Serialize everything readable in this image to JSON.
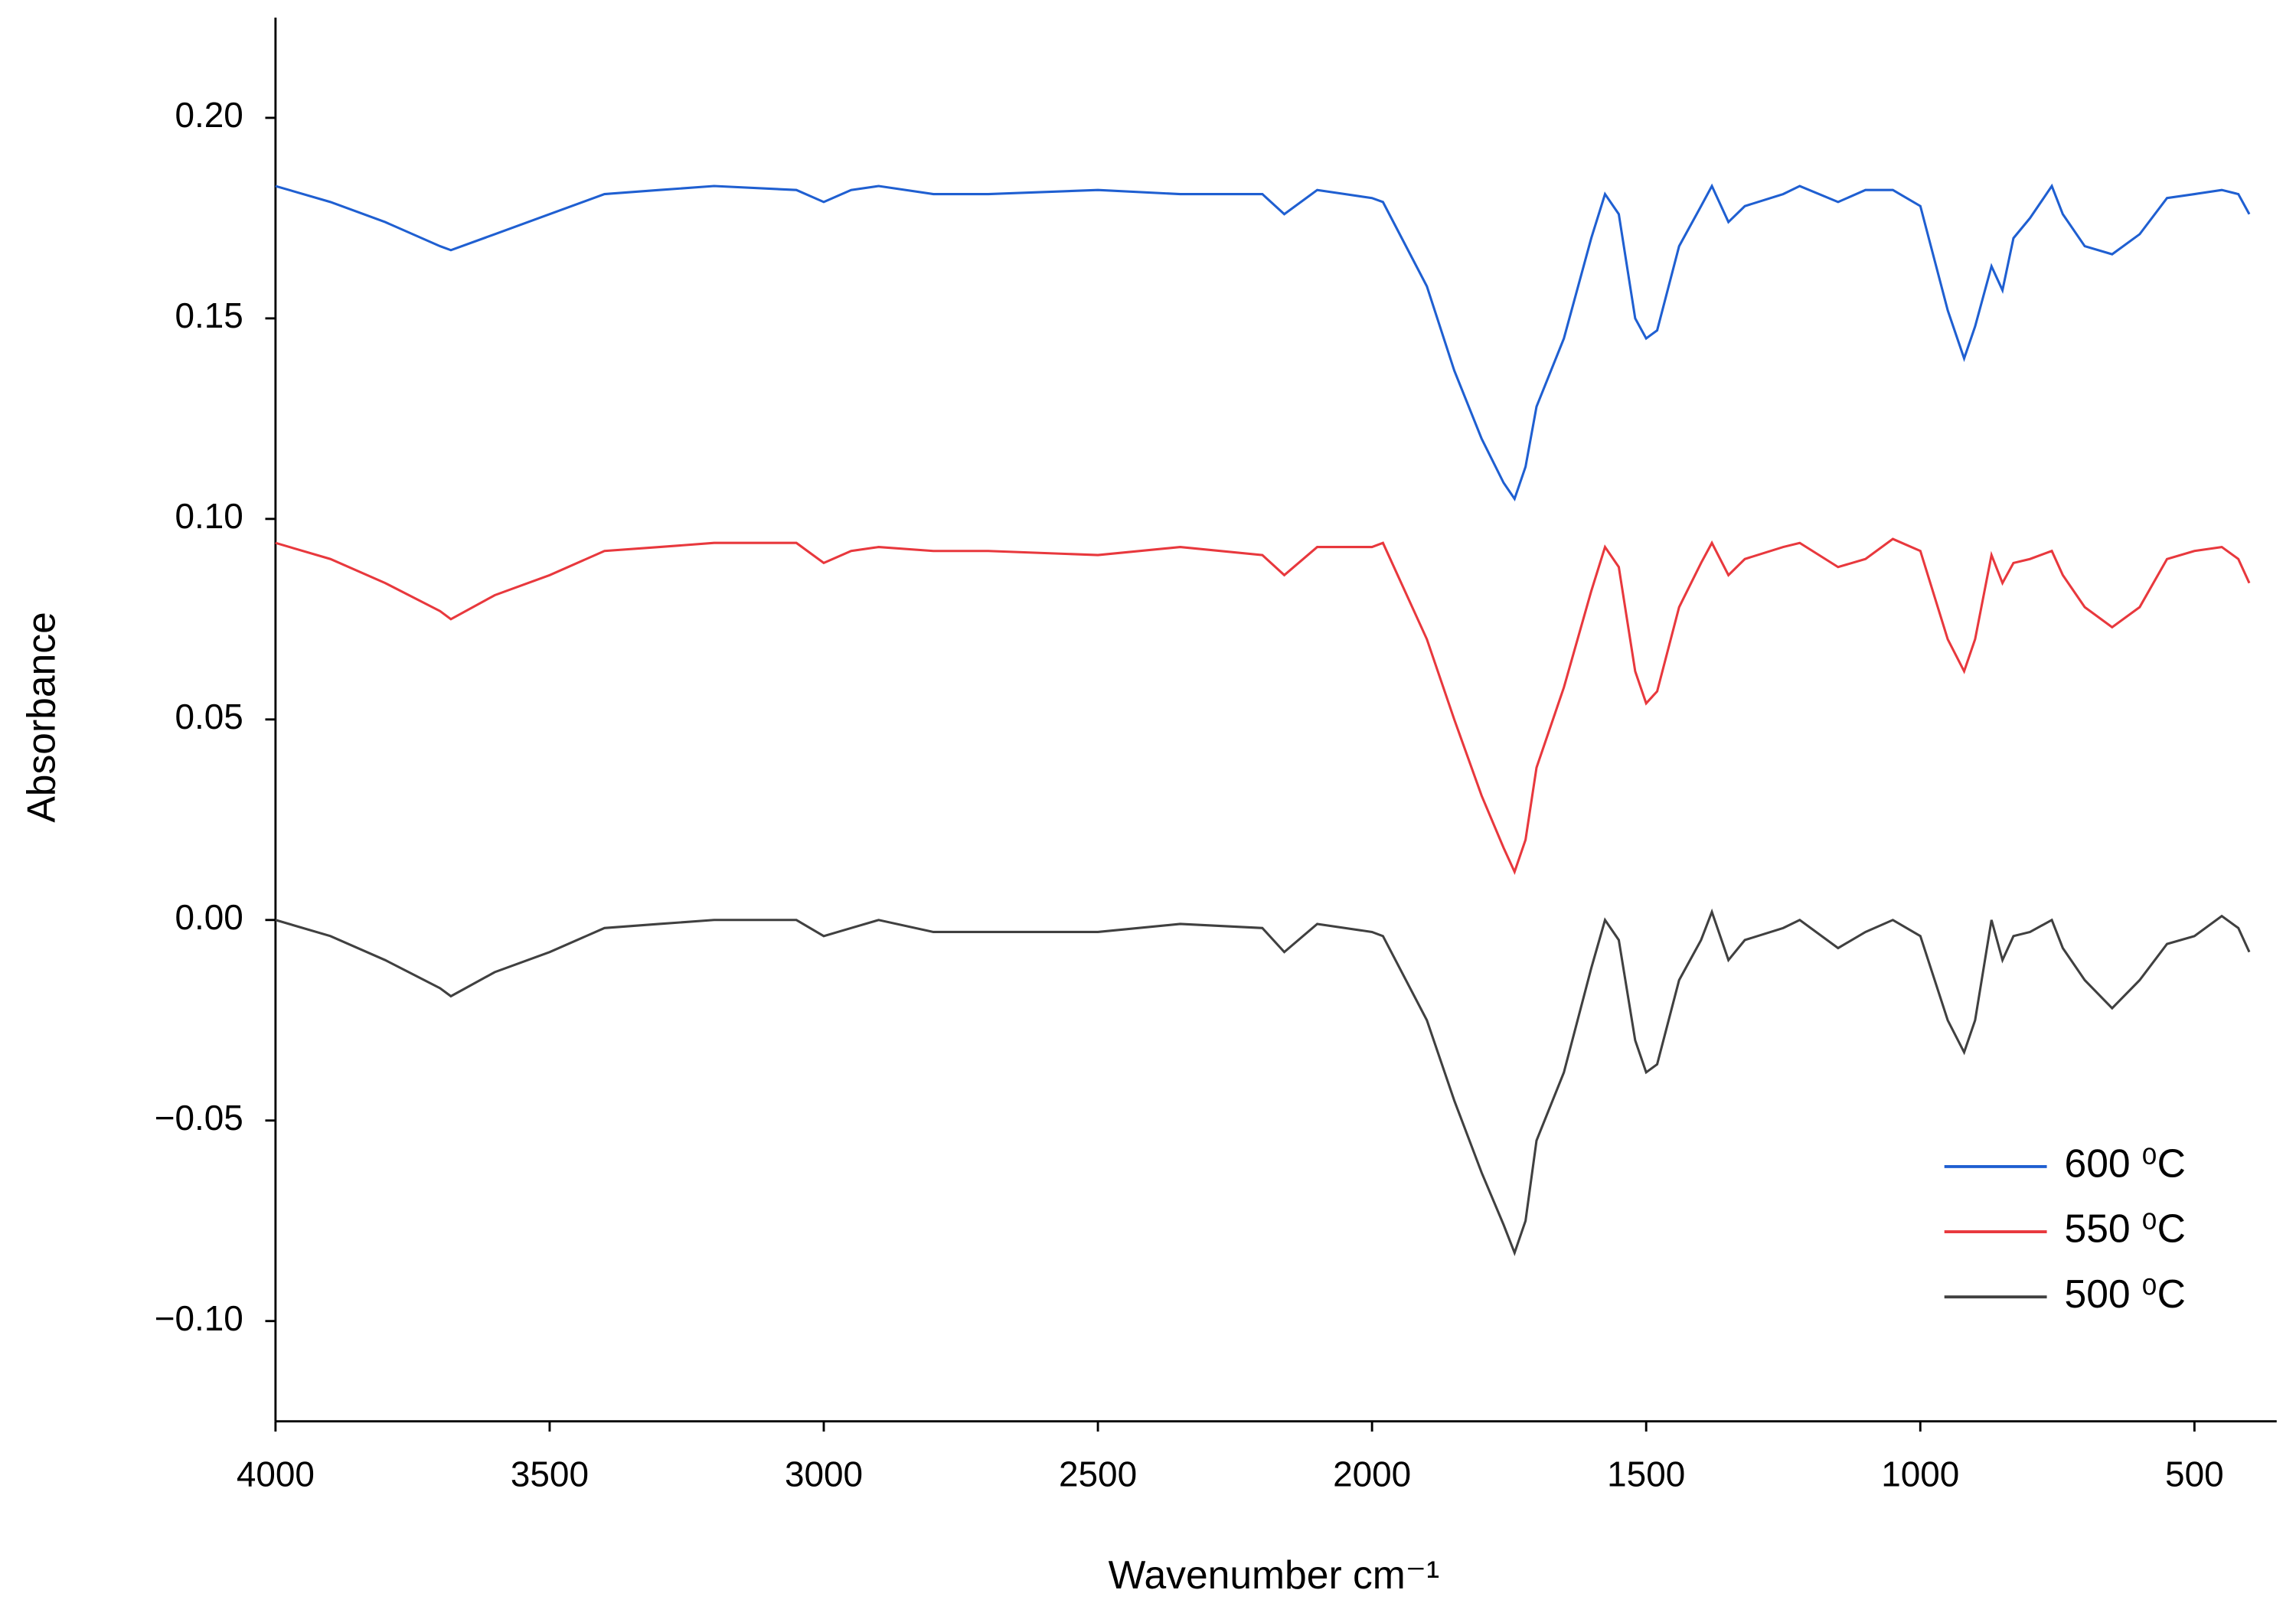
{
  "chart_data": {
    "type": "line",
    "xlabel": "Wavenumber cm⁻¹",
    "ylabel": "Absorbance",
    "x": [
      4000,
      3900,
      3800,
      3700,
      3680,
      3600,
      3500,
      3400,
      3300,
      3200,
      3050,
      3000,
      2950,
      2900,
      2800,
      2700,
      2500,
      2350,
      2200,
      2160,
      2100,
      2000,
      1980,
      1900,
      1850,
      1800,
      1760,
      1740,
      1720,
      1700,
      1650,
      1600,
      1575,
      1550,
      1520,
      1500,
      1480,
      1440,
      1400,
      1380,
      1350,
      1320,
      1250,
      1220,
      1150,
      1100,
      1050,
      1000,
      950,
      920,
      900,
      870,
      850,
      830,
      800,
      760,
      740,
      700,
      650,
      600,
      550,
      500,
      450,
      420,
      400
    ],
    "series": [
      {
        "name": "600 ⁰C",
        "color": "#1f5fd1",
        "values": [
          0.183,
          0.179,
          0.174,
          0.168,
          0.167,
          0.171,
          0.176,
          0.181,
          0.182,
          0.183,
          0.182,
          0.179,
          0.182,
          0.183,
          0.181,
          0.181,
          0.182,
          0.181,
          0.181,
          0.176,
          0.182,
          0.18,
          0.179,
          0.158,
          0.137,
          0.12,
          0.109,
          0.105,
          0.113,
          0.128,
          0.145,
          0.17,
          0.181,
          0.176,
          0.15,
          0.145,
          0.147,
          0.168,
          0.178,
          0.183,
          0.174,
          0.178,
          0.181,
          0.183,
          0.179,
          0.182,
          0.182,
          0.178,
          0.152,
          0.14,
          0.148,
          0.163,
          0.157,
          0.17,
          0.175,
          0.183,
          0.176,
          0.168,
          0.166,
          0.171,
          0.18,
          0.181,
          0.182,
          0.181,
          0.176
        ]
      },
      {
        "name": "550 ⁰C",
        "color": "#e8383d",
        "values": [
          0.094,
          0.09,
          0.084,
          0.077,
          0.075,
          0.081,
          0.086,
          0.092,
          0.093,
          0.094,
          0.094,
          0.089,
          0.092,
          0.093,
          0.092,
          0.092,
          0.091,
          0.093,
          0.091,
          0.086,
          0.093,
          0.093,
          0.094,
          0.07,
          0.05,
          0.031,
          0.018,
          0.012,
          0.02,
          0.038,
          0.058,
          0.082,
          0.093,
          0.088,
          0.062,
          0.054,
          0.057,
          0.078,
          0.089,
          0.094,
          0.086,
          0.09,
          0.093,
          0.094,
          0.088,
          0.09,
          0.095,
          0.092,
          0.07,
          0.062,
          0.07,
          0.091,
          0.084,
          0.089,
          0.09,
          0.092,
          0.086,
          0.078,
          0.073,
          0.078,
          0.09,
          0.092,
          0.093,
          0.09,
          0.084
        ]
      },
      {
        "name": "500 ⁰C",
        "color": "#404040",
        "values": [
          0,
          -0.004,
          -0.01,
          -0.017,
          -0.019,
          -0.013,
          -0.008,
          -0.002,
          -0.001,
          0,
          0,
          -0.004,
          -0.002,
          0,
          -0.003,
          -0.003,
          -0.003,
          -0.001,
          -0.002,
          -0.008,
          -0.001,
          -0.003,
          -0.004,
          -0.025,
          -0.045,
          -0.063,
          -0.076,
          -0.083,
          -0.075,
          -0.055,
          -0.038,
          -0.012,
          0,
          -0.005,
          -0.03,
          -0.038,
          -0.036,
          -0.015,
          -0.005,
          0.002,
          -0.01,
          -0.005,
          -0.002,
          0,
          -0.007,
          -0.003,
          0,
          -0.004,
          -0.025,
          -0.033,
          -0.025,
          0,
          -0.01,
          -0.004,
          -0.003,
          0,
          -0.007,
          -0.015,
          -0.022,
          -0.015,
          -0.006,
          -0.004,
          0.001,
          -0.002,
          -0.008
        ]
      }
    ],
    "xlim": [
      4000,
      350
    ],
    "xticks": [
      4000,
      3500,
      3000,
      2500,
      2000,
      1500,
      1000,
      500
    ],
    "ylim": [
      -0.125,
      0.225
    ],
    "yticks": [
      {
        "value": 0.2,
        "label": "0.20"
      },
      {
        "value": 0.15,
        "label": "0.15"
      },
      {
        "value": 0.1,
        "label": "0.10"
      },
      {
        "value": 0.05,
        "label": "0.05"
      },
      {
        "value": 0,
        "label": "0.00"
      },
      {
        "value": -0.05,
        "label": "−0.05"
      },
      {
        "value": -0.1,
        "label": "−0.10"
      }
    ],
    "grid": false,
    "legend": "lower right"
  }
}
